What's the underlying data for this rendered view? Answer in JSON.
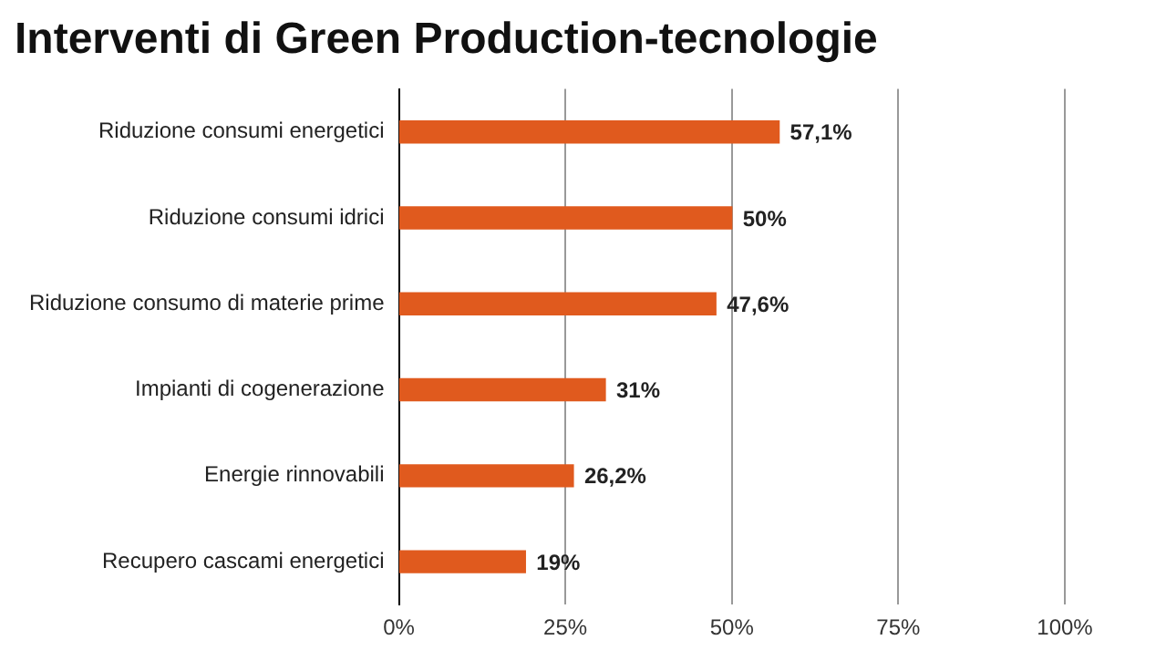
{
  "chart_data": {
    "type": "bar",
    "title": "Interventi di Green Production-tecnologie",
    "orientation": "horizontal",
    "categories": [
      "Riduzione consumi energetici",
      "Riduzione consumi idrici",
      "Riduzione consumo di materie prime",
      "Impianti di cogenerazione",
      "Energie rinnovabili",
      "Recupero cascami energetici"
    ],
    "values": [
      57.1,
      50,
      47.6,
      31,
      26.2,
      19
    ],
    "value_labels": [
      "57,1%",
      "50%",
      "47,6%",
      "31%",
      "26,2%",
      "19%"
    ],
    "color": "#e05a1e",
    "xlim": [
      0,
      100
    ],
    "xticks": [
      {
        "value": 0,
        "label": "0%"
      },
      {
        "value": 25,
        "label": "25%"
      },
      {
        "value": 50,
        "label": "50%"
      },
      {
        "value": 75,
        "label": "75%"
      },
      {
        "value": 100,
        "label": "100%"
      }
    ],
    "grid": "x",
    "legend": false
  }
}
